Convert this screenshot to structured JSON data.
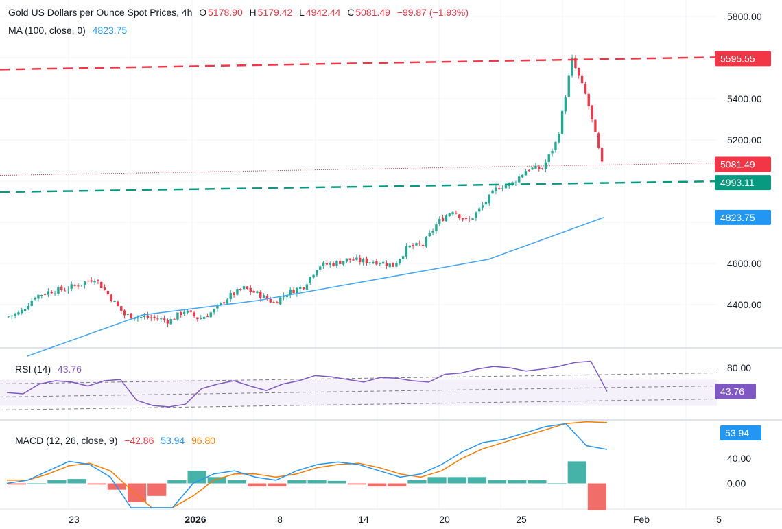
{
  "header": {
    "symbol_title": "Gold US Dollars per Ounce Spot Prices, 4h",
    "ohlc": {
      "o_label": "O",
      "o_value": "5178.90",
      "h_label": "H",
      "h_value": "5179.42",
      "l_label": "L",
      "l_value": "4942.44",
      "c_label": "C",
      "c_value": "5081.49",
      "change": "−99.87 (−1.93%)"
    },
    "ma_label": "MA (100, close, 0)",
    "ma_value": "4823.75"
  },
  "rsi_header": {
    "label": "RSI (14)",
    "value": "43.76"
  },
  "macd_header": {
    "label": "MACD (12, 26, close, 9)",
    "hist": "−42.86",
    "macd": "53.94",
    "signal": "96.80"
  },
  "colors": {
    "up": "#22ab94",
    "down": "#f23645",
    "ma": "#42a5f5",
    "rsi": "#7e57c2",
    "macd": "#2196f3",
    "signal": "#f57c00",
    "resistance": "#f23645",
    "support": "#089981"
  },
  "chart_data": [
    {
      "type": "candlestick",
      "title": "Gold US Dollars per Ounce Spot Prices, 4h",
      "y_ticks": [
        "5800.00",
        "5400.00",
        "5200.00",
        "4600.00",
        "4400.00"
      ],
      "ylim": [
        4230,
        5830
      ],
      "x_ticks": [
        "23",
        "2026",
        "8",
        "14",
        "20",
        "25",
        "Feb",
        "5"
      ],
      "price_labels": [
        {
          "text": "5595.55",
          "value": 5595.55,
          "kind": "resistance"
        },
        {
          "text": "5081.49",
          "value": 5081.49,
          "kind": "last"
        },
        {
          "text": "4993.11",
          "value": 4993.11,
          "kind": "support"
        },
        {
          "text": "4823.75",
          "value": 4823.75,
          "kind": "ma"
        }
      ],
      "anchors": [
        {
          "date": "Dec 19",
          "close": 4340
        },
        {
          "date": "Dec 20",
          "close": 4360
        },
        {
          "date": "Dec 22",
          "close": 4440
        },
        {
          "date": "Dec 23",
          "close": 4465
        },
        {
          "date": "Dec 24",
          "close": 4475
        },
        {
          "date": "Dec 25",
          "close": 4500
        },
        {
          "date": "Dec 26",
          "close": 4530
        },
        {
          "date": "Dec 27",
          "close": 4440
        },
        {
          "date": "Dec 28",
          "close": 4350
        },
        {
          "date": "Dec 29",
          "close": 4340
        },
        {
          "date": "Dec 30",
          "close": 4335
        },
        {
          "date": "Dec 31",
          "close": 4320
        },
        {
          "date": "Jan 1",
          "close": 4370
        },
        {
          "date": "Jan 2",
          "close": 4330
        },
        {
          "date": "Jan 3",
          "close": 4370
        },
        {
          "date": "Jan 5",
          "close": 4440
        },
        {
          "date": "Jan 7",
          "close": 4480
        },
        {
          "date": "Jan 8",
          "close": 4450
        },
        {
          "date": "Jan 9",
          "close": 4410
        },
        {
          "date": "Jan 10",
          "close": 4460
        },
        {
          "date": "Jan 11",
          "close": 4490
        },
        {
          "date": "Jan 12",
          "close": 4590
        },
        {
          "date": "Jan 13",
          "close": 4600
        },
        {
          "date": "Jan 14",
          "close": 4620
        },
        {
          "date": "Jan 15",
          "close": 4610
        },
        {
          "date": "Jan 16",
          "close": 4610
        },
        {
          "date": "Jan 17",
          "close": 4590
        },
        {
          "date": "Jan 18",
          "close": 4680
        },
        {
          "date": "Jan 19",
          "close": 4690
        },
        {
          "date": "Jan 20",
          "close": 4800
        },
        {
          "date": "Jan 21",
          "close": 4860
        },
        {
          "date": "Jan 22",
          "close": 4800
        },
        {
          "date": "Jan 23",
          "close": 4880
        },
        {
          "date": "Jan 24",
          "close": 4970
        },
        {
          "date": "Jan 25",
          "close": 4990
        },
        {
          "date": "Jan 26",
          "close": 5060
        },
        {
          "date": "Jan 27",
          "close": 5060
        },
        {
          "date": "Jan 28",
          "close": 5200
        },
        {
          "date": "Jan 29",
          "close": 5590
        },
        {
          "date": "Jan 30",
          "close": 5400
        },
        {
          "date": "Jan 31",
          "close": 5081.49
        }
      ],
      "ma_points": [
        {
          "date": "Dec 19",
          "value": 4150
        },
        {
          "date": "Jan 1",
          "value": 4350
        },
        {
          "date": "Jan 8",
          "value": 4420
        },
        {
          "date": "Jan 20",
          "value": 4520
        },
        {
          "date": "Jan 25",
          "value": 4620
        },
        {
          "date": "Jan 31",
          "value": 4823.75
        }
      ]
    },
    {
      "type": "line",
      "title": "RSI (14)",
      "y_ticks": [
        "80.00"
      ],
      "ylim": [
        0,
        100
      ],
      "bands": [
        70,
        50,
        30
      ],
      "values": [
        42,
        40,
        55,
        60,
        58,
        52,
        60,
        62,
        30,
        22,
        20,
        24,
        48,
        55,
        60,
        52,
        45,
        55,
        60,
        68,
        66,
        62,
        58,
        65,
        64,
        60,
        58,
        70,
        72,
        78,
        82,
        80,
        75,
        78,
        82,
        88,
        90,
        43.76
      ]
    },
    {
      "type": "line",
      "title": "MACD (12, 26, close, 9)",
      "y_ticks": [
        "40.00",
        "0.00"
      ],
      "ylim": [
        -30,
        90
      ],
      "macd": [
        0,
        5,
        20,
        35,
        30,
        10,
        -40,
        -60,
        -45,
        0,
        15,
        20,
        10,
        5,
        20,
        30,
        34,
        30,
        20,
        10,
        15,
        30,
        50,
        65,
        70,
        80,
        90,
        95,
        60,
        53.94
      ],
      "signal": [
        5,
        5,
        15,
        28,
        32,
        20,
        -10,
        -40,
        -50,
        -20,
        5,
        15,
        15,
        10,
        15,
        25,
        30,
        32,
        25,
        15,
        10,
        20,
        40,
        55,
        65,
        75,
        85,
        95,
        98,
        96.8
      ],
      "hist": [
        -2,
        0,
        5,
        7,
        -2,
        -10,
        -30,
        -20,
        5,
        20,
        10,
        5,
        -5,
        -5,
        5,
        5,
        4,
        -2,
        -5,
        -5,
        5,
        10,
        10,
        10,
        5,
        5,
        5,
        0,
        35,
        -42.86
      ]
    }
  ]
}
